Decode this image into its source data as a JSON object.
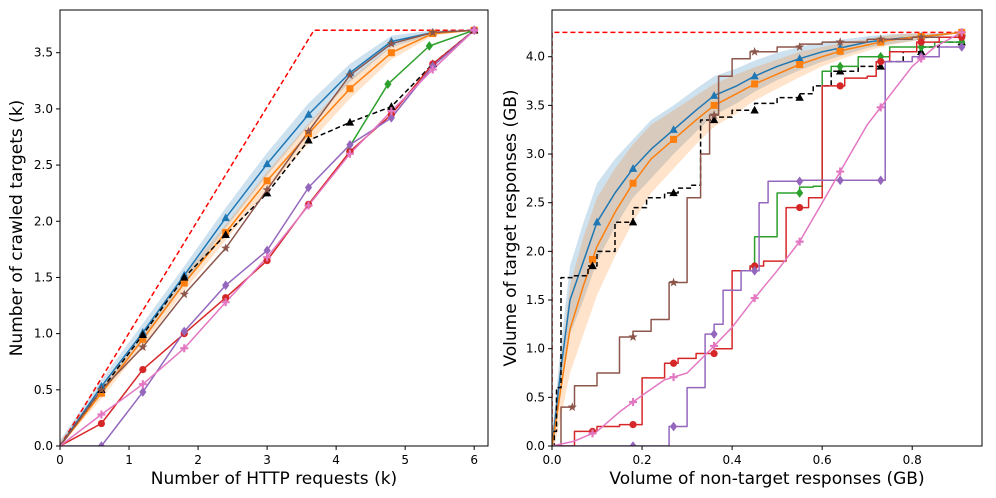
{
  "chart_data": [
    {
      "type": "line",
      "xlabel": "Number of HTTP requests (k)",
      "ylabel": "Number of crawled targets (k)",
      "xlim": [
        0,
        6.2
      ],
      "ylim": [
        0,
        3.88
      ],
      "xticks": [
        0,
        1,
        2,
        3,
        4,
        5,
        6
      ],
      "xtick_labels": [
        "0",
        "1",
        "2",
        "3",
        "4",
        "5",
        "6"
      ],
      "yticks": [
        0,
        0.5,
        1.0,
        1.5,
        2.0,
        2.5,
        3.0,
        3.5
      ],
      "ytick_labels": [
        "0.0",
        "0.5",
        "1.0",
        "1.5",
        "2.0",
        "2.5",
        "3.0",
        "3.5"
      ],
      "grid": false,
      "legend": "none",
      "series": [
        {
          "name": "optimal",
          "color": "#ff0000",
          "dash": "dashed",
          "marker": "none",
          "x": [
            0,
            3.68,
            6.0
          ],
          "y": [
            0,
            3.7,
            3.7
          ]
        },
        {
          "name": "blue",
          "color": "#1f77b4",
          "marker": "triangle",
          "x": [
            0,
            0.6,
            1.2,
            1.8,
            2.4,
            3.0,
            3.6,
            4.2,
            4.8,
            5.4,
            6.0
          ],
          "y": [
            0,
            0.53,
            1.01,
            1.52,
            2.03,
            2.51,
            2.95,
            3.32,
            3.6,
            3.68,
            3.7
          ],
          "band": [
            0.05,
            0.06,
            0.08,
            0.08,
            0.09,
            0.1,
            0.1,
            0.08,
            0.05,
            0.02,
            0
          ]
        },
        {
          "name": "orange",
          "color": "#ff7f0e",
          "marker": "square",
          "x": [
            0,
            0.6,
            1.2,
            1.8,
            2.4,
            3.0,
            3.6,
            4.2,
            4.8,
            5.4,
            6.0
          ],
          "y": [
            0,
            0.47,
            0.95,
            1.45,
            1.9,
            2.36,
            2.78,
            3.18,
            3.5,
            3.67,
            3.7
          ],
          "band": [
            0.04,
            0.05,
            0.06,
            0.07,
            0.07,
            0.08,
            0.09,
            0.09,
            0.06,
            0.02,
            0
          ]
        },
        {
          "name": "black",
          "color": "#000000",
          "dash": "dashed",
          "marker": "triangle",
          "x": [
            0,
            0.6,
            1.2,
            1.8,
            2.4,
            3.0,
            3.6,
            4.2,
            4.8,
            5.4,
            6.0
          ],
          "y": [
            0,
            0.5,
            0.99,
            1.5,
            1.88,
            2.25,
            2.72,
            2.88,
            3.02,
            3.4,
            3.7
          ]
        },
        {
          "name": "brown",
          "color": "#8c564b",
          "marker": "star",
          "x": [
            0,
            0.6,
            1.2,
            1.8,
            2.4,
            3.0,
            3.6,
            4.2,
            4.8,
            5.4,
            6.0
          ],
          "y": [
            0,
            0.5,
            0.88,
            1.35,
            1.76,
            2.28,
            2.8,
            3.3,
            3.58,
            3.68,
            3.7
          ]
        },
        {
          "name": "green",
          "color": "#2ca02c",
          "marker": "diamond",
          "x": [
            4.15,
            4.75,
            5.35,
            6.0
          ],
          "y": [
            2.62,
            3.22,
            3.56,
            3.7
          ]
        },
        {
          "name": "red",
          "color": "#d62728",
          "marker": "circle",
          "x": [
            0,
            0.6,
            1.2,
            1.8,
            2.4,
            3.0,
            3.6,
            4.2,
            4.8,
            5.4,
            6.0
          ],
          "y": [
            0,
            0.2,
            0.68,
            1.0,
            1.32,
            1.65,
            2.15,
            2.62,
            2.95,
            3.4,
            3.7
          ]
        },
        {
          "name": "purple",
          "color": "#9467bd",
          "marker": "diamond",
          "x": [
            0,
            0.6,
            1.2,
            1.8,
            2.4,
            3.0,
            3.6,
            4.2,
            4.8,
            5.4,
            6.0
          ],
          "y": [
            0,
            0.0,
            0.48,
            1.02,
            1.43,
            1.74,
            2.3,
            2.68,
            2.92,
            3.38,
            3.7
          ]
        },
        {
          "name": "pink",
          "color": "#e377c2",
          "marker": "plus",
          "x": [
            0,
            0.6,
            1.2,
            1.8,
            2.4,
            3.0,
            3.6,
            4.2,
            4.8,
            5.4,
            6.0
          ],
          "y": [
            0,
            0.28,
            0.55,
            0.87,
            1.28,
            1.68,
            2.14,
            2.6,
            2.98,
            3.35,
            3.7
          ]
        }
      ]
    },
    {
      "type": "line",
      "xlabel": "Volume of non-target responses (GB)",
      "ylabel": "Volume of target responses (GB)",
      "xlim": [
        0,
        0.955
      ],
      "ylim": [
        0,
        4.48
      ],
      "xticks": [
        0,
        0.2,
        0.4,
        0.6,
        0.8
      ],
      "xtick_labels": [
        "0.0",
        "0.2",
        "0.4",
        "0.6",
        "0.8"
      ],
      "yticks": [
        0,
        0.5,
        1.0,
        1.5,
        2.0,
        2.5,
        3.0,
        3.5,
        4.0
      ],
      "ytick_labels": [
        "0.0",
        "0.5",
        "1.0",
        "1.5",
        "2.0",
        "2.5",
        "3.0",
        "3.5",
        "4.0"
      ],
      "grid": false,
      "legend": "none",
      "series": [
        {
          "name": "optimal",
          "color": "#ff0000",
          "dash": "dashed",
          "marker": "none",
          "x": [
            0,
            0,
            0.915
          ],
          "y": [
            0,
            4.25,
            4.25
          ]
        },
        {
          "name": "blue",
          "color": "#1f77b4",
          "marker": "triangle",
          "x": [
            0,
            0.005,
            0.02,
            0.04,
            0.07,
            0.1,
            0.14,
            0.18,
            0.22,
            0.27,
            0.32,
            0.36,
            0.41,
            0.45,
            0.5,
            0.55,
            0.6,
            0.65,
            0.7,
            0.75,
            0.8,
            0.85,
            0.91
          ],
          "y": [
            0,
            0.2,
            0.8,
            1.5,
            1.9,
            2.3,
            2.6,
            2.85,
            3.05,
            3.25,
            3.45,
            3.6,
            3.7,
            3.8,
            3.9,
            3.98,
            4.05,
            4.1,
            4.15,
            4.18,
            4.2,
            4.22,
            4.25
          ],
          "markers_x": [
            0.1,
            0.18,
            0.27,
            0.36,
            0.45,
            0.55,
            0.64,
            0.73,
            0.82,
            0.91
          ],
          "band": [
            0.1,
            0.15,
            0.25,
            0.35,
            0.4,
            0.4,
            0.35,
            0.3,
            0.3,
            0.25,
            0.22,
            0.2,
            0.18,
            0.16,
            0.14,
            0.12,
            0.1,
            0.08,
            0.06,
            0.05,
            0.04,
            0.02,
            0
          ]
        },
        {
          "name": "orange",
          "color": "#ff7f0e",
          "marker": "square",
          "x": [
            0,
            0.005,
            0.02,
            0.04,
            0.07,
            0.1,
            0.14,
            0.18,
            0.22,
            0.27,
            0.32,
            0.36,
            0.41,
            0.45,
            0.5,
            0.55,
            0.6,
            0.65,
            0.7,
            0.75,
            0.8,
            0.85,
            0.91
          ],
          "y": [
            0,
            0.15,
            0.6,
            1.2,
            1.65,
            2.05,
            2.4,
            2.7,
            2.95,
            3.15,
            3.35,
            3.5,
            3.62,
            3.72,
            3.82,
            3.92,
            4.0,
            4.07,
            4.12,
            4.17,
            4.2,
            4.22,
            4.25
          ],
          "markers_x": [
            0.09,
            0.18,
            0.27,
            0.36,
            0.45,
            0.55,
            0.64,
            0.73,
            0.82,
            0.91
          ],
          "band": [
            0.1,
            0.15,
            0.3,
            0.45,
            0.5,
            0.5,
            0.45,
            0.4,
            0.35,
            0.3,
            0.25,
            0.22,
            0.2,
            0.17,
            0.15,
            0.13,
            0.1,
            0.08,
            0.06,
            0.05,
            0.04,
            0.02,
            0
          ]
        },
        {
          "name": "black",
          "color": "#000000",
          "dash": "dashed",
          "marker": "triangle",
          "step": true,
          "x": [
            0,
            0.005,
            0.01,
            0.02,
            0.05,
            0.08,
            0.1,
            0.14,
            0.18,
            0.21,
            0.25,
            0.28,
            0.31,
            0.33,
            0.36,
            0.4,
            0.45,
            0.5,
            0.55,
            0.58,
            0.62,
            0.68,
            0.73,
            0.78,
            0.82,
            0.86,
            0.91
          ],
          "y": [
            0,
            0.15,
            0.6,
            1.73,
            1.75,
            1.85,
            2.0,
            2.3,
            2.45,
            2.55,
            2.6,
            2.65,
            2.68,
            3.35,
            3.38,
            3.45,
            3.52,
            3.58,
            3.62,
            3.7,
            3.85,
            3.9,
            3.95,
            4.05,
            4.1,
            4.15,
            4.25
          ],
          "markers_x": [
            0.09,
            0.18,
            0.27,
            0.36,
            0.45,
            0.55,
            0.64,
            0.73,
            0.82,
            0.91
          ]
        },
        {
          "name": "brown",
          "color": "#8c564b",
          "marker": "star",
          "step": true,
          "x": [
            0,
            0.02,
            0.05,
            0.1,
            0.15,
            0.18,
            0.22,
            0.26,
            0.3,
            0.33,
            0.35,
            0.37,
            0.4,
            0.44,
            0.5,
            0.55,
            0.6,
            0.7,
            0.8,
            0.91
          ],
          "y": [
            0,
            0.4,
            0.62,
            0.75,
            1.12,
            1.18,
            1.3,
            1.68,
            2.55,
            3.0,
            3.4,
            3.8,
            3.98,
            4.05,
            4.1,
            4.13,
            4.15,
            4.18,
            4.2,
            4.25
          ],
          "markers_x": [
            0.045,
            0.18,
            0.27,
            0.36,
            0.45,
            0.55,
            0.64,
            0.73,
            0.82,
            0.91
          ]
        },
        {
          "name": "green",
          "color": "#2ca02c",
          "marker": "diamond",
          "step": true,
          "x": [
            0.42,
            0.44,
            0.45,
            0.5,
            0.55,
            0.58,
            0.6,
            0.62,
            0.68,
            0.75,
            0.85,
            0.91
          ],
          "y": [
            1.8,
            1.85,
            2.15,
            2.6,
            2.66,
            2.67,
            3.85,
            3.9,
            4.0,
            4.1,
            4.15,
            4.25
          ],
          "markers_x": [
            0.45,
            0.55,
            0.64,
            0.73,
            0.82,
            0.91
          ]
        },
        {
          "name": "red",
          "color": "#d62728",
          "marker": "circle",
          "step": true,
          "x": [
            0,
            0.05,
            0.1,
            0.15,
            0.2,
            0.25,
            0.28,
            0.32,
            0.36,
            0.4,
            0.44,
            0.47,
            0.52,
            0.57,
            0.6,
            0.65,
            0.7,
            0.72,
            0.75,
            0.81,
            0.86,
            0.91
          ],
          "y": [
            0,
            0.15,
            0.2,
            0.22,
            0.7,
            0.85,
            0.9,
            0.95,
            1.0,
            1.8,
            1.85,
            1.9,
            2.45,
            2.55,
            3.7,
            3.78,
            3.8,
            3.95,
            4.05,
            4.15,
            4.2,
            4.25
          ],
          "markers_x": [
            0.09,
            0.18,
            0.27,
            0.36,
            0.45,
            0.55,
            0.64,
            0.73,
            0.82,
            0.91
          ]
        },
        {
          "name": "purple",
          "color": "#9467bd",
          "marker": "diamond",
          "step": true,
          "x": [
            0,
            0.18,
            0.26,
            0.3,
            0.34,
            0.36,
            0.38,
            0.42,
            0.46,
            0.48,
            0.55,
            0.62,
            0.73,
            0.74,
            0.8,
            0.86,
            0.91
          ],
          "y": [
            0,
            0.0,
            0.2,
            0.6,
            1.15,
            1.25,
            1.6,
            1.8,
            2.5,
            2.72,
            2.73,
            2.73,
            2.73,
            3.95,
            4.0,
            4.1,
            4.25
          ],
          "markers_x": [
            0.18,
            0.27,
            0.36,
            0.45,
            0.55,
            0.64,
            0.73,
            0.82,
            0.91
          ]
        },
        {
          "name": "pink",
          "color": "#e377c2",
          "marker": "plus",
          "x": [
            0,
            0.05,
            0.1,
            0.15,
            0.2,
            0.25,
            0.3,
            0.35,
            0.4,
            0.45,
            0.5,
            0.55,
            0.6,
            0.65,
            0.7,
            0.75,
            0.8,
            0.85,
            0.91
          ],
          "y": [
            0,
            0.05,
            0.15,
            0.35,
            0.52,
            0.68,
            0.75,
            0.98,
            1.22,
            1.52,
            1.8,
            2.1,
            2.5,
            2.9,
            3.3,
            3.6,
            3.9,
            4.1,
            4.25
          ],
          "markers_x": [
            0.09,
            0.18,
            0.27,
            0.36,
            0.45,
            0.55,
            0.64,
            0.73,
            0.82,
            0.91
          ]
        }
      ]
    }
  ]
}
